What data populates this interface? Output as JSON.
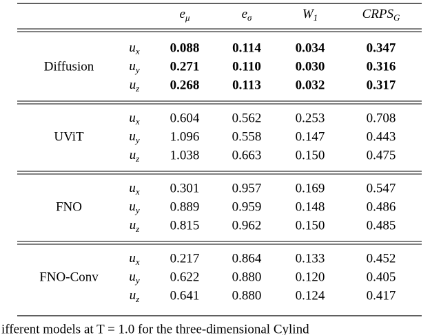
{
  "table": {
    "columns": [
      {
        "symbol": "e",
        "sub": "μ"
      },
      {
        "symbol": "e",
        "sub": "σ"
      },
      {
        "symbol": "W",
        "sub": "1"
      },
      {
        "symbol": "CRPS",
        "sub": "G"
      }
    ],
    "groups": [
      {
        "model": "Diffusion",
        "bold": true,
        "rows": [
          {
            "symbol": "u",
            "sub": "x",
            "values": [
              "0.088",
              "0.114",
              "0.034",
              "0.347"
            ]
          },
          {
            "symbol": "u",
            "sub": "y",
            "values": [
              "0.271",
              "0.110",
              "0.030",
              "0.316"
            ]
          },
          {
            "symbol": "u",
            "sub": "z",
            "values": [
              "0.268",
              "0.113",
              "0.032",
              "0.317"
            ]
          }
        ]
      },
      {
        "model": "UViT",
        "bold": false,
        "rows": [
          {
            "symbol": "u",
            "sub": "x",
            "values": [
              "0.604",
              "0.562",
              "0.253",
              "0.708"
            ]
          },
          {
            "symbol": "u",
            "sub": "y",
            "values": [
              "1.096",
              "0.558",
              "0.147",
              "0.443"
            ]
          },
          {
            "symbol": "u",
            "sub": "z",
            "values": [
              "1.038",
              "0.663",
              "0.150",
              "0.475"
            ]
          }
        ]
      },
      {
        "model": "FNO",
        "bold": false,
        "rows": [
          {
            "symbol": "u",
            "sub": "x",
            "values": [
              "0.301",
              "0.957",
              "0.169",
              "0.547"
            ]
          },
          {
            "symbol": "u",
            "sub": "y",
            "values": [
              "0.889",
              "0.959",
              "0.148",
              "0.486"
            ]
          },
          {
            "symbol": "u",
            "sub": "z",
            "values": [
              "0.815",
              "0.962",
              "0.150",
              "0.485"
            ]
          }
        ]
      },
      {
        "model": "FNO-Conv",
        "bold": false,
        "rows": [
          {
            "symbol": "u",
            "sub": "x",
            "values": [
              "0.217",
              "0.864",
              "0.133",
              "0.452"
            ]
          },
          {
            "symbol": "u",
            "sub": "y",
            "values": [
              "0.622",
              "0.880",
              "0.120",
              "0.405"
            ]
          },
          {
            "symbol": "u",
            "sub": "z",
            "values": [
              "0.641",
              "0.880",
              "0.124",
              "0.417"
            ]
          }
        ]
      }
    ]
  },
  "caption": "ifferent models at T = 1.0 for the three-dimensional Cylind"
}
